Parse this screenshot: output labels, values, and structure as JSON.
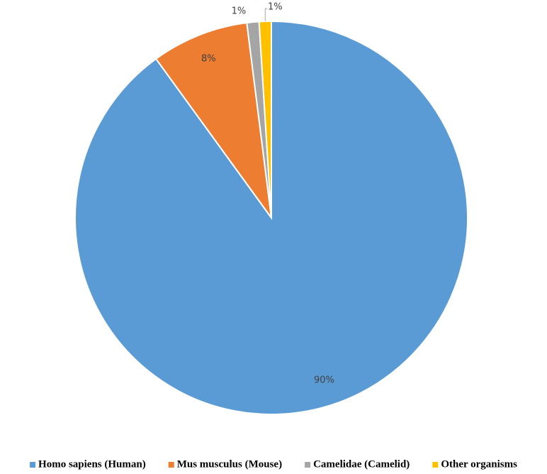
{
  "chart_data": {
    "type": "pie",
    "categories": [
      "Homo sapiens (Human)",
      "Mus musculus (Mouse)",
      "Camelidae (Camelid)",
      "Other organisms"
    ],
    "values": [
      90,
      8,
      1,
      1
    ],
    "value_labels": [
      "90%",
      "8%",
      "1%",
      "1%"
    ],
    "colors": [
      "#5b9bd5",
      "#ed7d31",
      "#a5a5a5",
      "#ffc000"
    ],
    "legend": "bottom"
  }
}
